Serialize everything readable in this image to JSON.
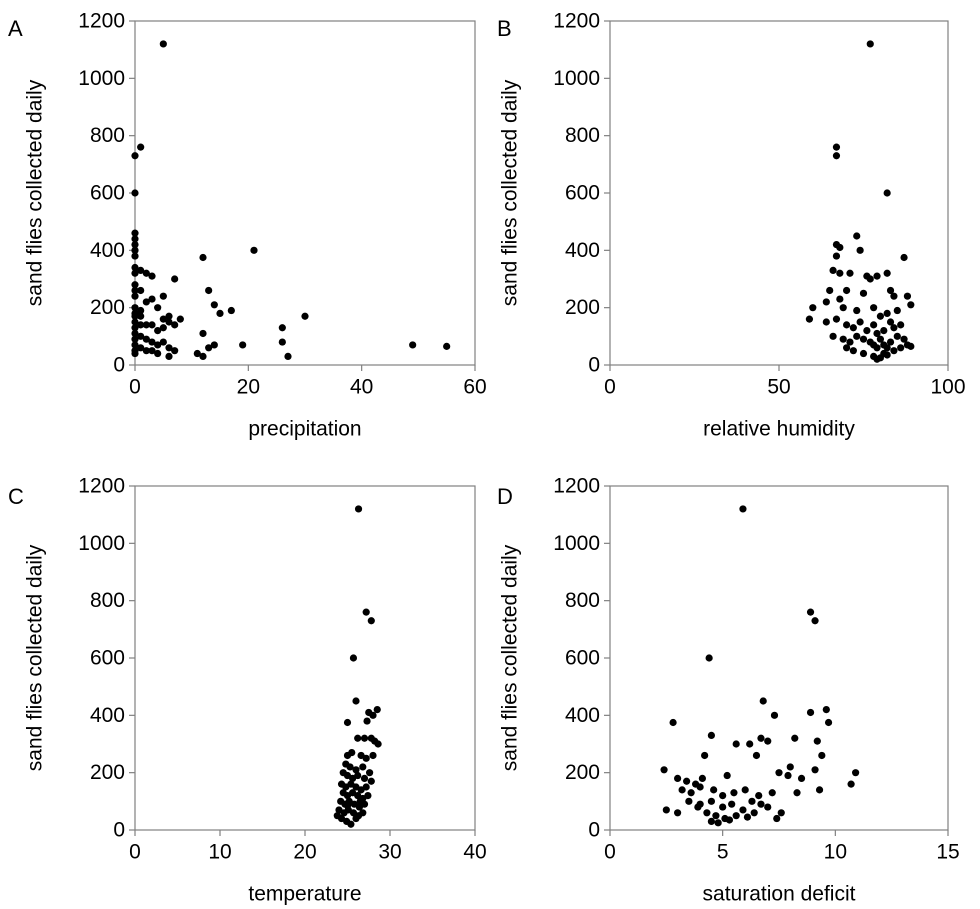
{
  "chart_data": [
    {
      "panel": "A",
      "type": "scatter",
      "xlabel": "precipitation",
      "ylabel": "sand flies collected daily",
      "xlim": [
        0,
        60
      ],
      "ylim": [
        0,
        1200
      ],
      "xticks": [
        "0",
        "20",
        "40",
        "60"
      ],
      "yticks": [
        "0",
        "200",
        "400",
        "600",
        "800",
        "1000",
        "1200"
      ],
      "points": [
        [
          5,
          1120
        ],
        [
          0,
          730
        ],
        [
          1,
          760
        ],
        [
          0,
          600
        ],
        [
          0,
          460
        ],
        [
          0,
          440
        ],
        [
          0,
          420
        ],
        [
          0,
          400
        ],
        [
          0,
          380
        ],
        [
          0,
          340
        ],
        [
          0,
          320
        ],
        [
          1,
          330
        ],
        [
          2,
          320
        ],
        [
          3,
          310
        ],
        [
          0,
          280
        ],
        [
          0,
          260
        ],
        [
          0,
          240
        ],
        [
          1,
          260
        ],
        [
          2,
          220
        ],
        [
          3,
          230
        ],
        [
          5,
          240
        ],
        [
          4,
          200
        ],
        [
          6,
          170
        ],
        [
          7,
          300
        ],
        [
          8,
          160
        ],
        [
          0,
          200
        ],
        [
          0,
          180
        ],
        [
          0,
          170
        ],
        [
          1,
          190
        ],
        [
          1,
          170
        ],
        [
          0,
          150
        ],
        [
          0,
          130
        ],
        [
          1,
          140
        ],
        [
          2,
          140
        ],
        [
          3,
          140
        ],
        [
          4,
          120
        ],
        [
          5,
          130
        ],
        [
          5,
          160
        ],
        [
          6,
          150
        ],
        [
          7,
          140
        ],
        [
          0,
          110
        ],
        [
          0,
          90
        ],
        [
          1,
          100
        ],
        [
          2,
          90
        ],
        [
          3,
          80
        ],
        [
          4,
          70
        ],
        [
          5,
          80
        ],
        [
          6,
          60
        ],
        [
          0,
          70
        ],
        [
          1,
          60
        ],
        [
          2,
          50
        ],
        [
          3,
          50
        ],
        [
          4,
          40
        ],
        [
          6,
          30
        ],
        [
          7,
          50
        ],
        [
          0,
          50
        ],
        [
          0,
          40
        ],
        [
          12,
          375
        ],
        [
          13,
          260
        ],
        [
          14,
          210
        ],
        [
          15,
          180
        ],
        [
          17,
          190
        ],
        [
          12,
          110
        ],
        [
          11,
          40
        ],
        [
          12,
          30
        ],
        [
          13,
          60
        ],
        [
          14,
          70
        ],
        [
          19,
          70
        ],
        [
          21,
          400
        ],
        [
          26,
          130
        ],
        [
          26,
          80
        ],
        [
          27,
          30
        ],
        [
          30,
          170
        ],
        [
          49,
          70
        ],
        [
          55,
          65
        ]
      ]
    },
    {
      "panel": "B",
      "type": "scatter",
      "xlabel": "relative humidity",
      "ylabel": "sand flies collected daily",
      "xlim": [
        0,
        100
      ],
      "ylim": [
        0,
        1200
      ],
      "xticks": [
        "0",
        "50",
        "100"
      ],
      "yticks": [
        "0",
        "200",
        "400",
        "600",
        "800",
        "1000",
        "1200"
      ],
      "points": [
        [
          77,
          1120
        ],
        [
          67,
          760
        ],
        [
          67,
          730
        ],
        [
          82,
          600
        ],
        [
          73,
          450
        ],
        [
          67,
          420
        ],
        [
          68,
          410
        ],
        [
          74,
          400
        ],
        [
          67,
          380
        ],
        [
          87,
          375
        ],
        [
          66,
          330
        ],
        [
          68,
          320
        ],
        [
          76,
          310
        ],
        [
          77,
          300
        ],
        [
          79,
          310
        ],
        [
          82,
          320
        ],
        [
          71,
          320
        ],
        [
          65,
          260
        ],
        [
          70,
          260
        ],
        [
          75,
          250
        ],
        [
          83,
          260
        ],
        [
          84,
          240
        ],
        [
          88,
          240
        ],
        [
          60,
          200
        ],
        [
          64,
          220
        ],
        [
          68,
          230
        ],
        [
          69,
          200
        ],
        [
          73,
          190
        ],
        [
          78,
          200
        ],
        [
          80,
          170
        ],
        [
          82,
          180
        ],
        [
          85,
          190
        ],
        [
          89,
          210
        ],
        [
          59,
          160
        ],
        [
          64,
          150
        ],
        [
          67,
          160
        ],
        [
          70,
          140
        ],
        [
          72,
          130
        ],
        [
          74,
          150
        ],
        [
          76,
          120
        ],
        [
          78,
          140
        ],
        [
          79,
          110
        ],
        [
          81,
          120
        ],
        [
          83,
          150
        ],
        [
          84,
          130
        ],
        [
          86,
          140
        ],
        [
          66,
          100
        ],
        [
          69,
          90
        ],
        [
          71,
          80
        ],
        [
          73,
          100
        ],
        [
          75,
          90
        ],
        [
          77,
          80
        ],
        [
          78,
          70
        ],
        [
          79,
          60
        ],
        [
          80,
          90
        ],
        [
          81,
          70
        ],
        [
          82,
          60
        ],
        [
          83,
          80
        ],
        [
          84,
          50
        ],
        [
          86,
          60
        ],
        [
          88,
          70
        ],
        [
          89,
          65
        ],
        [
          72,
          50
        ],
        [
          75,
          40
        ],
        [
          78,
          30
        ],
        [
          79,
          20
        ],
        [
          80,
          25
        ],
        [
          81,
          40
        ],
        [
          82,
          35
        ],
        [
          70,
          60
        ],
        [
          85,
          100
        ],
        [
          87,
          90
        ]
      ]
    },
    {
      "panel": "C",
      "type": "scatter",
      "xlabel": "temperature",
      "ylabel": "sand flies collected daily",
      "xlim": [
        0,
        40
      ],
      "ylim": [
        0,
        1200
      ],
      "xticks": [
        "0",
        "10",
        "20",
        "30",
        "40"
      ],
      "yticks": [
        "0",
        "200",
        "400",
        "600",
        "800",
        "1000",
        "1200"
      ],
      "points": [
        [
          26.3,
          1120
        ],
        [
          27.2,
          760
        ],
        [
          27.8,
          730
        ],
        [
          25.7,
          600
        ],
        [
          26.0,
          450
        ],
        [
          28.5,
          420
        ],
        [
          27.5,
          410
        ],
        [
          28.0,
          400
        ],
        [
          25.0,
          375
        ],
        [
          27.3,
          380
        ],
        [
          26.2,
          320
        ],
        [
          27.0,
          320
        ],
        [
          28.2,
          310
        ],
        [
          28.6,
          300
        ],
        [
          27.8,
          320
        ],
        [
          25.5,
          270
        ],
        [
          26.6,
          260
        ],
        [
          27.2,
          250
        ],
        [
          28.0,
          260
        ],
        [
          25.0,
          260
        ],
        [
          24.8,
          230
        ],
        [
          25.3,
          220
        ],
        [
          26.0,
          210
        ],
        [
          26.8,
          220
        ],
        [
          27.6,
          200
        ],
        [
          24.5,
          200
        ],
        [
          25.0,
          190
        ],
        [
          25.6,
          180
        ],
        [
          26.2,
          190
        ],
        [
          27.0,
          180
        ],
        [
          27.8,
          170
        ],
        [
          24.3,
          160
        ],
        [
          24.8,
          150
        ],
        [
          25.4,
          160
        ],
        [
          26.0,
          150
        ],
        [
          26.6,
          140
        ],
        [
          27.2,
          150
        ],
        [
          24.5,
          130
        ],
        [
          25.0,
          120
        ],
        [
          25.6,
          130
        ],
        [
          26.2,
          120
        ],
        [
          26.8,
          110
        ],
        [
          27.4,
          120
        ],
        [
          24.2,
          100
        ],
        [
          24.7,
          90
        ],
        [
          25.2,
          100
        ],
        [
          25.8,
          90
        ],
        [
          26.4,
          80
        ],
        [
          27.0,
          90
        ],
        [
          24.0,
          70
        ],
        [
          24.6,
          60
        ],
        [
          25.1,
          70
        ],
        [
          25.7,
          60
        ],
        [
          26.3,
          50
        ],
        [
          24.3,
          40
        ],
        [
          24.9,
          30
        ],
        [
          25.4,
          20
        ],
        [
          26.0,
          40
        ],
        [
          26.8,
          60
        ],
        [
          23.8,
          50
        ],
        [
          25.0,
          85
        ],
        [
          26.5,
          100
        ]
      ]
    },
    {
      "panel": "D",
      "type": "scatter",
      "xlabel": "saturation deficit",
      "ylabel": "sand flies collected daily",
      "xlim": [
        0,
        15
      ],
      "ylim": [
        0,
        1200
      ],
      "xticks": [
        "0",
        "5",
        "10",
        "15"
      ],
      "yticks": [
        "0",
        "200",
        "400",
        "600",
        "800",
        "1000",
        "1200"
      ],
      "points": [
        [
          5.9,
          1120
        ],
        [
          8.9,
          760
        ],
        [
          9.1,
          730
        ],
        [
          4.4,
          600
        ],
        [
          6.8,
          450
        ],
        [
          9.6,
          420
        ],
        [
          8.9,
          410
        ],
        [
          7.3,
          400
        ],
        [
          2.8,
          375
        ],
        [
          9.7,
          375
        ],
        [
          4.5,
          330
        ],
        [
          6.7,
          320
        ],
        [
          6.2,
          300
        ],
        [
          5.6,
          300
        ],
        [
          7.0,
          310
        ],
        [
          8.2,
          320
        ],
        [
          9.2,
          310
        ],
        [
          4.2,
          260
        ],
        [
          6.5,
          260
        ],
        [
          8.0,
          220
        ],
        [
          9.1,
          210
        ],
        [
          9.4,
          260
        ],
        [
          10.9,
          200
        ],
        [
          10.7,
          160
        ],
        [
          2.4,
          210
        ],
        [
          3.0,
          180
        ],
        [
          3.4,
          170
        ],
        [
          3.8,
          160
        ],
        [
          4.1,
          180
        ],
        [
          5.2,
          190
        ],
        [
          7.5,
          200
        ],
        [
          7.9,
          190
        ],
        [
          8.5,
          180
        ],
        [
          3.2,
          140
        ],
        [
          3.6,
          130
        ],
        [
          4.0,
          150
        ],
        [
          4.6,
          140
        ],
        [
          5.0,
          120
        ],
        [
          5.5,
          130
        ],
        [
          6.0,
          140
        ],
        [
          6.6,
          120
        ],
        [
          7.2,
          130
        ],
        [
          8.3,
          130
        ],
        [
          9.3,
          140
        ],
        [
          3.5,
          100
        ],
        [
          4.0,
          90
        ],
        [
          4.5,
          100
        ],
        [
          5.0,
          80
        ],
        [
          5.4,
          90
        ],
        [
          5.9,
          70
        ],
        [
          6.3,
          100
        ],
        [
          6.7,
          90
        ],
        [
          7.0,
          80
        ],
        [
          7.6,
          60
        ],
        [
          2.5,
          70
        ],
        [
          3.0,
          60
        ],
        [
          4.3,
          60
        ],
        [
          4.7,
          50
        ],
        [
          5.1,
          40
        ],
        [
          5.6,
          50
        ],
        [
          6.1,
          45
        ],
        [
          4.5,
          30
        ],
        [
          4.8,
          25
        ],
        [
          5.3,
          35
        ],
        [
          7.4,
          40
        ],
        [
          3.9,
          80
        ],
        [
          6.4,
          60
        ]
      ]
    }
  ]
}
